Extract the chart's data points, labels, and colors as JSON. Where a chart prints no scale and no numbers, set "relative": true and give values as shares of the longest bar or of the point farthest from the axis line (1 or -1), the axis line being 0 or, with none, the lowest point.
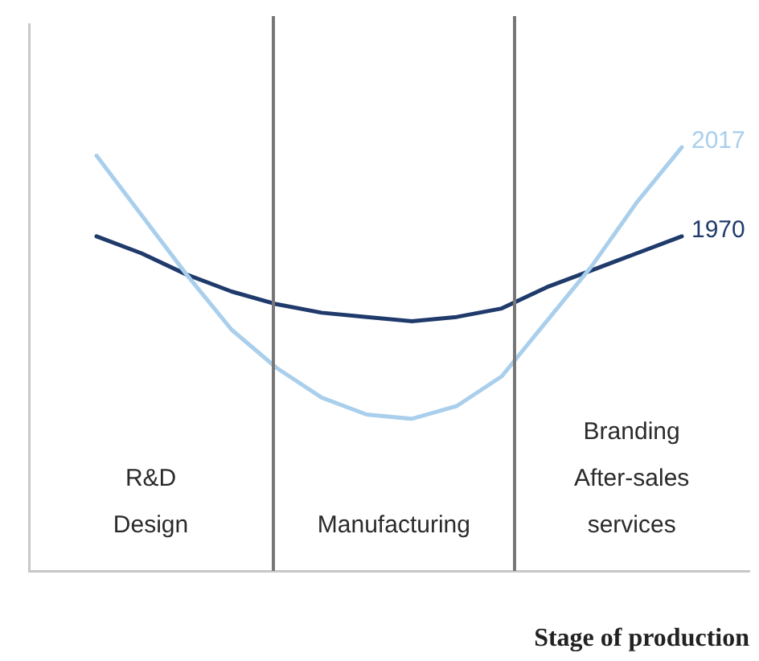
{
  "chart_data": {
    "type": "line",
    "relative": true,
    "xlabel": "Stage of production",
    "categories": [
      null,
      null,
      null,
      null,
      null,
      null,
      null,
      null,
      null,
      null,
      null,
      null,
      null,
      null,
      null,
      null
    ],
    "annotations": [
      "R&D\nDesign",
      "Manufacturing",
      "Branding\nAfter-sales\nservices"
    ],
    "series": [
      {
        "name": "2017",
        "color": "#a9cfec",
        "values": [
          null,
          0.98,
          0.84,
          0.7,
          0.57,
          0.48,
          0.41,
          0.37,
          0.36,
          0.39,
          0.46,
          0.59,
          0.72,
          0.87,
          1,
          null
        ]
      },
      {
        "name": "1970",
        "color": "#1f3a6b",
        "values": [
          null,
          0.79,
          0.75,
          0.7,
          0.66,
          0.63,
          0.61,
          0.6,
          0.59,
          0.6,
          0.62,
          0.67,
          0.71,
          0.75,
          0.79,
          null
        ]
      }
    ]
  }
}
